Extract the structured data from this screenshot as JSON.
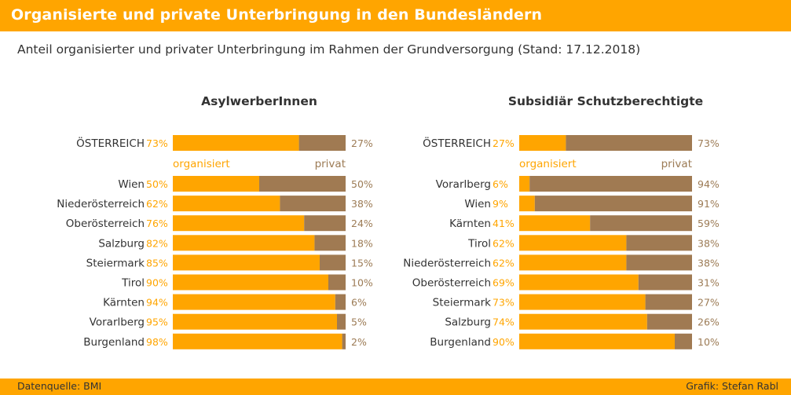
{
  "header": {
    "title": "Organisierte und private Unterbringung in den Bundesländern"
  },
  "subtitle": "Anteil organisierter und privater Unterbringung im Rahmen der Grundversorgung (Stand: 17.12.2018)",
  "footer": {
    "source": "Datenquelle: BMI",
    "credit": "Grafik: Stefan Rabl"
  },
  "colors": {
    "accent": "#ffa500",
    "organisiert": "#ffa500",
    "privat": "#a07a52"
  },
  "chart_data": [
    {
      "type": "bar",
      "stacked": true,
      "orientation": "horizontal",
      "title": "AsylwerberInnen",
      "total": {
        "category": "ÖSTERREICH",
        "organisiert": 73,
        "privat": 27
      },
      "legend": {
        "organisiert": "organisiert",
        "privat": "privat"
      },
      "unit": "%",
      "xlim": [
        0,
        100
      ],
      "categories": [
        "Wien",
        "Niederösterreich",
        "Oberösterreich",
        "Salzburg",
        "Steiermark",
        "Tirol",
        "Kärnten",
        "Vorarlberg",
        "Burgenland"
      ],
      "series": [
        {
          "name": "organisiert",
          "values": [
            50,
            62,
            76,
            82,
            85,
            90,
            94,
            95,
            98
          ]
        },
        {
          "name": "privat",
          "values": [
            50,
            38,
            24,
            18,
            15,
            10,
            6,
            5,
            2
          ]
        }
      ]
    },
    {
      "type": "bar",
      "stacked": true,
      "orientation": "horizontal",
      "title": "Subsidiär Schutzberechtigte",
      "total": {
        "category": "ÖSTERREICH",
        "organisiert": 27,
        "privat": 73
      },
      "legend": {
        "organisiert": "organisiert",
        "privat": "privat"
      },
      "unit": "%",
      "xlim": [
        0,
        100
      ],
      "categories": [
        "Vorarlberg",
        "Wien",
        "Kärnten",
        "Tirol",
        "Niederösterreich",
        "Oberösterreich",
        "Steiermark",
        "Salzburg",
        "Burgenland"
      ],
      "series": [
        {
          "name": "organisiert",
          "values": [
            6,
            9,
            41,
            62,
            62,
            69,
            73,
            74,
            90
          ]
        },
        {
          "name": "privat",
          "values": [
            94,
            91,
            59,
            38,
            38,
            31,
            27,
            26,
            10
          ]
        }
      ]
    }
  ]
}
